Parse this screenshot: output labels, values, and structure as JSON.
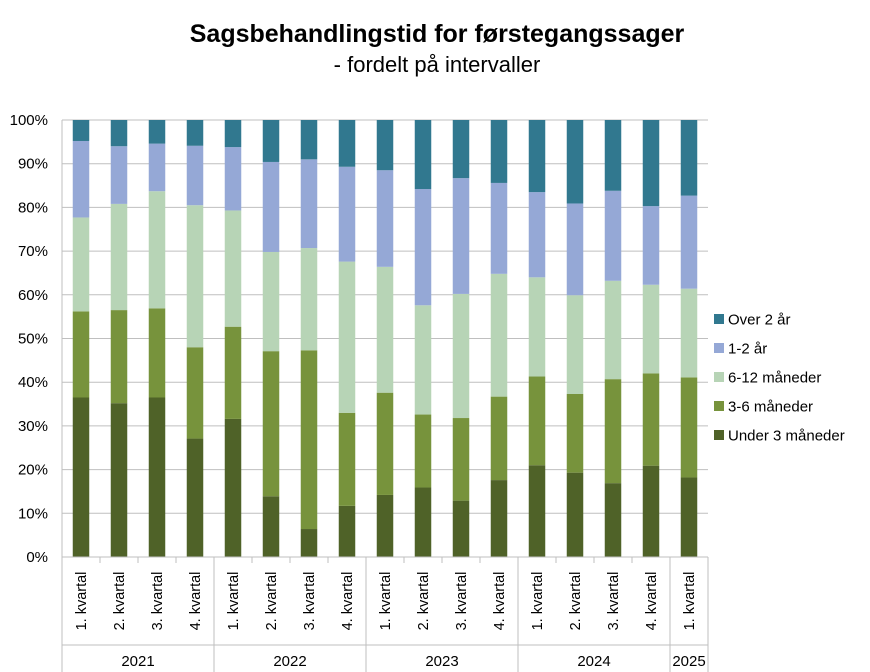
{
  "chart_data": {
    "type": "bar",
    "stacked": true,
    "percent": true,
    "title": "Sagsbehandlingstid for førstegangssager",
    "subtitle": "- fordelt på intervaller",
    "xlabel": "",
    "ylabel": "",
    "ylim": [
      0,
      100
    ],
    "yticks": [
      "0%",
      "10%",
      "20%",
      "30%",
      "40%",
      "50%",
      "60%",
      "70%",
      "80%",
      "90%",
      "100%"
    ],
    "grid": true,
    "legend_position": "right",
    "categories": [
      "1. kvartal",
      "2. kvartal",
      "3. kvartal",
      "4. kvartal",
      "1. kvartal",
      "2. kvartal",
      "3. kvartal",
      "4. kvartal",
      "1. kvartal",
      "2. kvartal",
      "3. kvartal",
      "4. kvartal",
      "1. kvartal",
      "2. kvartal",
      "3. kvartal",
      "4. kvartal",
      "1. kvartal"
    ],
    "groups": [
      {
        "label": "2021",
        "count": 4
      },
      {
        "label": "2022",
        "count": 4
      },
      {
        "label": "2023",
        "count": 4
      },
      {
        "label": "2024",
        "count": 4
      },
      {
        "label": "2025",
        "count": 1
      }
    ],
    "series": [
      {
        "name": "Under 3 måneder",
        "color": "#4f6228",
        "values": [
          36.5,
          35.2,
          36.5,
          27.1,
          31.6,
          13.9,
          6.4,
          11.7,
          14.2,
          15.9,
          12.9,
          17.6,
          21.0,
          19.3,
          16.9,
          20.9,
          18.2
        ]
      },
      {
        "name": "3-6 måneder",
        "color": "#77933c",
        "values": [
          19.7,
          21.3,
          20.4,
          20.9,
          21.1,
          33.2,
          40.9,
          21.3,
          23.4,
          16.7,
          18.9,
          19.1,
          20.3,
          18.0,
          23.8,
          21.1,
          22.9
        ]
      },
      {
        "name": "6-12 måneder",
        "color": "#b7d4b6",
        "values": [
          21.5,
          24.3,
          26.8,
          32.5,
          26.6,
          22.7,
          23.4,
          34.6,
          28.8,
          25.0,
          28.4,
          28.1,
          22.7,
          22.6,
          22.5,
          20.3,
          20.3
        ]
      },
      {
        "name": "1-2 år",
        "color": "#95a8d6",
        "values": [
          17.5,
          13.2,
          10.9,
          13.6,
          14.5,
          20.6,
          20.3,
          21.7,
          22.1,
          26.6,
          26.5,
          20.8,
          19.5,
          21.0,
          20.6,
          18.0,
          21.3
        ]
      },
      {
        "name": "Over 2 år",
        "color": "#31788f",
        "values": [
          4.8,
          6.0,
          5.4,
          5.9,
          6.2,
          9.6,
          9.0,
          10.7,
          11.5,
          15.8,
          13.3,
          14.4,
          16.5,
          19.1,
          16.2,
          19.7,
          17.3
        ]
      }
    ]
  }
}
